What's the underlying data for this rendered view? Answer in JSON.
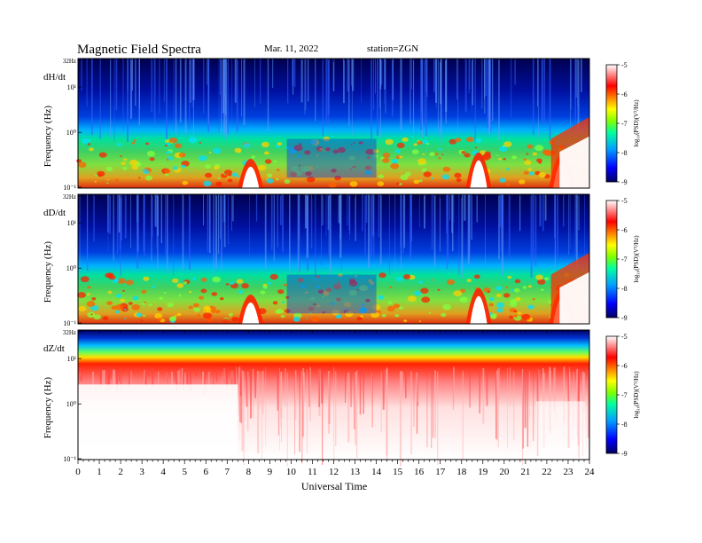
{
  "header": {
    "title": "Magnetic  Field  Spectra",
    "date": "Mar. 11, 2022",
    "station": "station=ZGN"
  },
  "chart_data": {
    "type": "heatmap",
    "xlabel": "Universal Time",
    "xlim": [
      0,
      24
    ],
    "x_ticks": [
      "0",
      "1",
      "2",
      "3",
      "4",
      "5",
      "6",
      "7",
      "8",
      "9",
      "10",
      "11",
      "12",
      "13",
      "14",
      "15",
      "16",
      "17",
      "18",
      "19",
      "20",
      "21",
      "22",
      "23",
      "24"
    ],
    "colorbar": {
      "label": "log₁₀(PSD)(V²/Hz)",
      "range": [
        -9,
        -5
      ],
      "ticks": [
        "-5",
        "-6",
        "-7",
        "-8",
        "-9"
      ],
      "colors": [
        "#000080",
        "#0000ff",
        "#00c0ff",
        "#00ff80",
        "#80ff00",
        "#ffff00",
        "#ff8000",
        "#ff0000",
        "#ffffff"
      ]
    },
    "panels": [
      {
        "component": "dH/dt",
        "ylabel": "Frequency  (Hz)",
        "y_ticks": {
          "top": "32Hz",
          "upper": "10¹",
          "mid": "10⁰",
          "bottom": "10⁻¹"
        }
      },
      {
        "component": "dD/dt",
        "ylabel": "Frequency  (Hz)",
        "y_ticks": {
          "top": "32Hz",
          "upper": "10¹",
          "mid": "10⁰",
          "bottom": "10⁻¹"
        }
      },
      {
        "component": "dZ/dt",
        "ylabel": "Frequency  (Hz)",
        "y_ticks": {
          "top": "32Hz",
          "upper": "10¹",
          "mid": "10⁰",
          "bottom": "10⁻¹"
        }
      }
    ]
  }
}
